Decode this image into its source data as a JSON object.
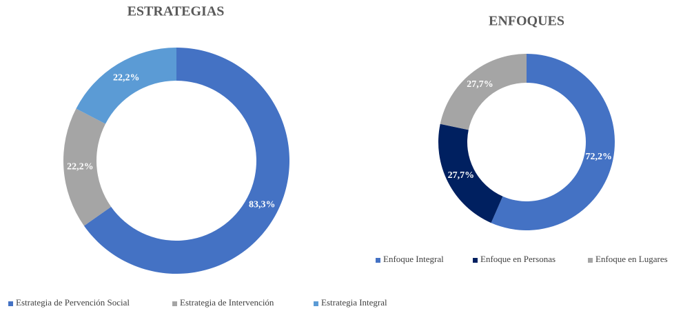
{
  "chart_data": [
    {
      "type": "pie",
      "donut": true,
      "title": "ESTRATEGIAS",
      "categories": [
        "Estrategia de Pervención Social",
        "Estrategia de Intervención",
        "Estrategia Integral"
      ],
      "values": [
        83.3,
        22.2,
        22.2
      ],
      "value_labels": [
        "83,3%",
        "22,2%",
        "22,2%"
      ],
      "colors": [
        "#4472c4",
        "#a5a5a5",
        "#5b9bd5"
      ],
      "legend": "bottom"
    },
    {
      "type": "pie",
      "donut": true,
      "title": "ENFOQUES",
      "categories": [
        "Enfoque Integral",
        "Enfoque en Personas",
        "Enfoque en Lugares"
      ],
      "values": [
        72.2,
        27.7,
        27.7
      ],
      "value_labels": [
        "72,2%",
        "27,7%",
        "27,7%"
      ],
      "colors": [
        "#4472c4",
        "#002060",
        "#a5a5a5"
      ],
      "legend": "bottom"
    }
  ]
}
